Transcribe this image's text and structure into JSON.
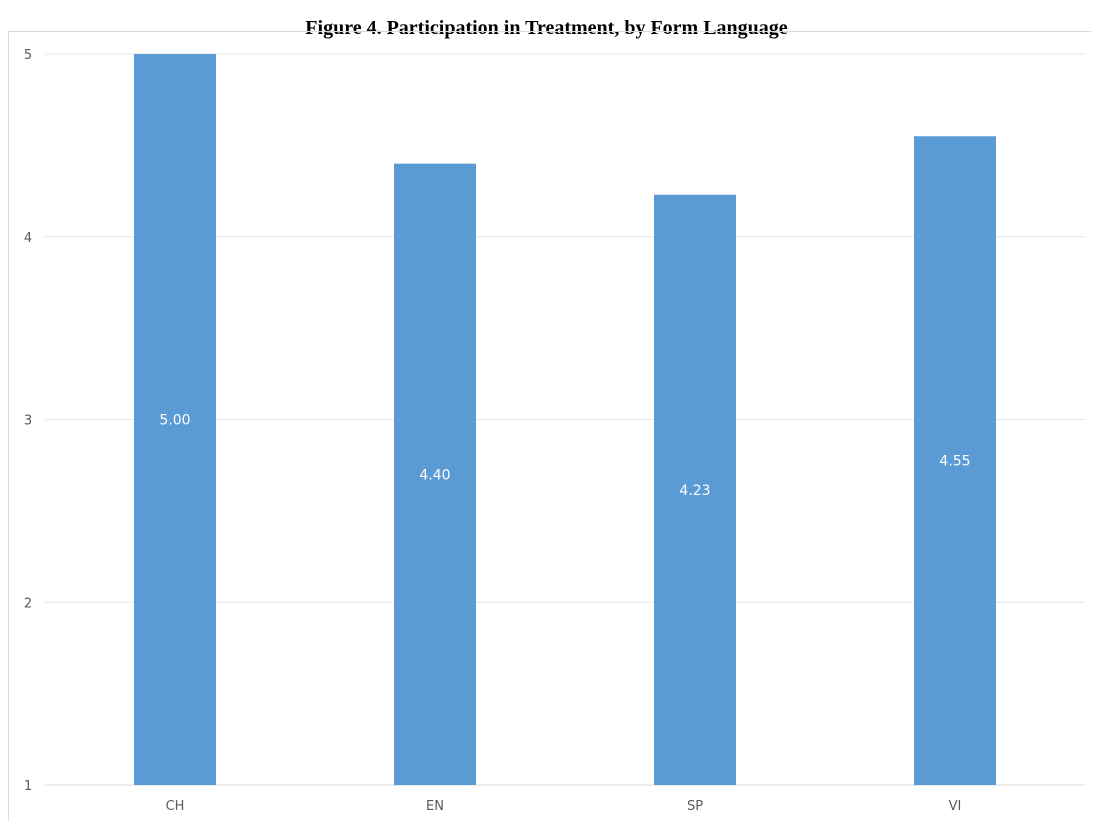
{
  "title": "Figure 4. Participation in Treatment, by Form Language",
  "chart_data": {
    "type": "bar",
    "categories": [
      "CH",
      "EN",
      "SP",
      "VI"
    ],
    "values": [
      5.0,
      4.4,
      4.23,
      4.55
    ],
    "data_labels": [
      "5.00",
      "4.40",
      "4.23",
      "4.55"
    ],
    "title": "Figure 4. Participation in Treatment, by Form Language",
    "xlabel": "",
    "ylabel": "",
    "ylim": [
      1,
      5
    ],
    "yticks": [
      "1",
      "2",
      "3",
      "4",
      "5"
    ],
    "grid": true,
    "legend": "none",
    "colors": {
      "bar": "#5b9bd5",
      "grid": "#e6e6e6",
      "axis": "#d9d9d9",
      "tick_text": "#595959",
      "data_label_text": "#ffffff"
    }
  }
}
